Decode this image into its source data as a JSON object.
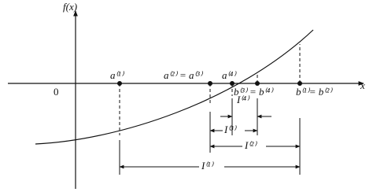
{
  "axes": {
    "y_label": "f(x)",
    "x_label": "x",
    "origin": "0"
  },
  "points": {
    "a1": "a⁽¹⁾",
    "a2_a3": "a⁽²⁾ = a⁽³⁾",
    "a4": "a⁽⁴⁾",
    "b3_b4": "b⁽³⁾ = b⁽⁴⁾",
    "b1_b2": "b⁽¹⁾= b⁽²⁾"
  },
  "intervals": {
    "i1": "I⁽¹⁾",
    "i2": "I⁽²⁾",
    "i3": "I⁽³⁾",
    "i4": "I⁽⁴⁾"
  }
}
